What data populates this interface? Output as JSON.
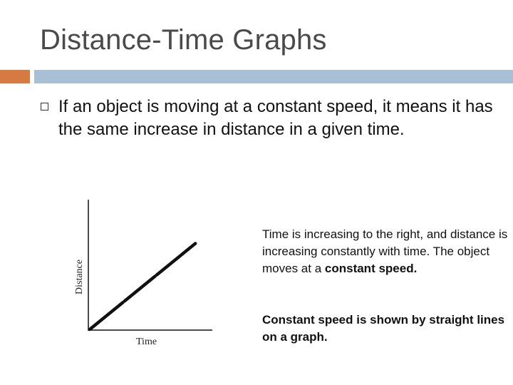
{
  "slide": {
    "title": "Distance-Time Graphs",
    "bullet_text": "If an object is moving at a constant speed, it means it has the same increase in distance in a given time."
  },
  "graph": {
    "y_label": "Distance",
    "x_label": "Time"
  },
  "notes": {
    "explanation_prefix": "Time is increasing to the right, and distance is increasing constantly with time. The object moves at a",
    "explanation_bold": "constant speed.",
    "summary": "Constant speed is shown by straight lines on a graph."
  },
  "colors": {
    "accent_orange": "#d77a41",
    "accent_blue": "#a9bfd6"
  }
}
